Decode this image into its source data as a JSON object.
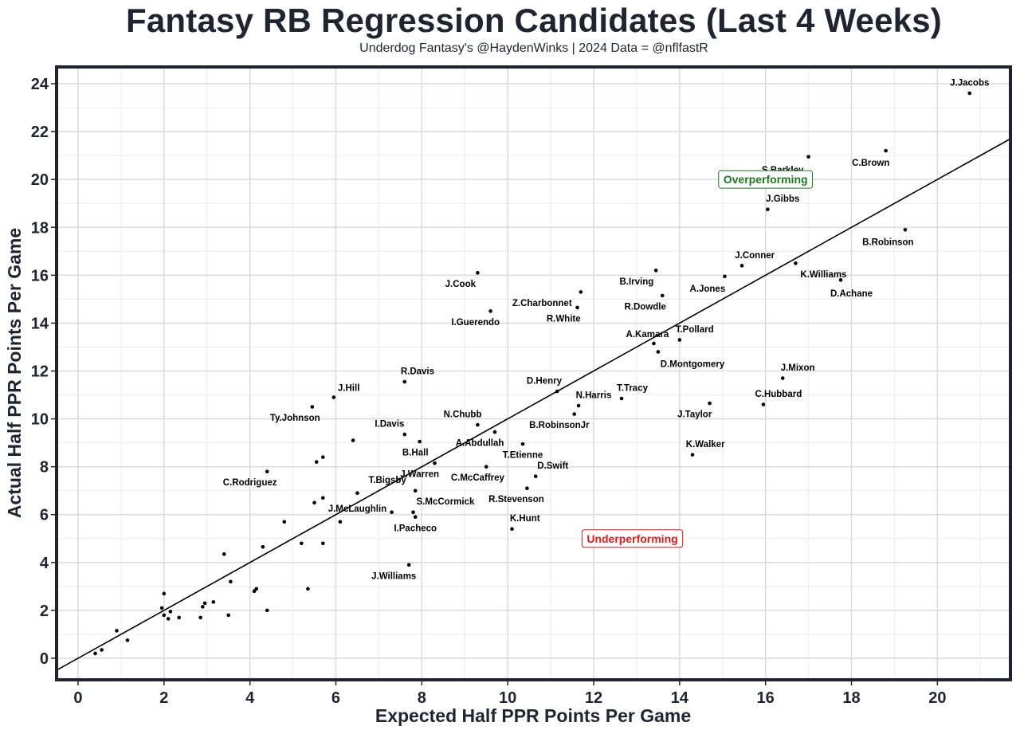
{
  "chart_data": {
    "type": "scatter",
    "title": "Fantasy RB Regression Candidates (Last 4 Weeks)",
    "subtitle": "Underdog Fantasy's @HaydenWinks | 2024 Data = @nflfastR",
    "xlabel": "Expected Half PPR Points Per Game",
    "ylabel": "Actual Half PPR Points Per Game",
    "xlim": [
      -0.5,
      21.7
    ],
    "ylim": [
      -0.9,
      24.7
    ],
    "xticks": [
      "0",
      "2",
      "4",
      "6",
      "8",
      "10",
      "12",
      "14",
      "16",
      "18",
      "20"
    ],
    "yticks": [
      "0",
      "2",
      "4",
      "6",
      "8",
      "10",
      "12",
      "14",
      "16",
      "18",
      "20",
      "22",
      "24"
    ],
    "reference_line": {
      "slope": 1,
      "intercept": 0
    },
    "annotations": [
      {
        "text": "Overperforming",
        "x": 16.0,
        "y": 20.0,
        "color": "#1a7a1a"
      },
      {
        "text": "Underperforming",
        "x": 12.9,
        "y": 5.0,
        "color": "#e01818"
      }
    ],
    "points": [
      {
        "x": 20.75,
        "y": 23.6,
        "label": "J.Jacobs",
        "lx": 20.75,
        "ly": 24.05
      },
      {
        "x": 18.8,
        "y": 21.2,
        "label": "C.Brown",
        "lx": 18.45,
        "ly": 20.7
      },
      {
        "x": 17.0,
        "y": 20.95,
        "label": "S.Barkley",
        "lx": 16.4,
        "ly": 20.4
      },
      {
        "x": 16.05,
        "y": 18.75,
        "label": "J.Gibbs",
        "lx": 16.4,
        "ly": 19.2
      },
      {
        "x": 19.25,
        "y": 17.9,
        "label": "B.Robinson",
        "lx": 18.85,
        "ly": 17.4
      },
      {
        "x": 15.45,
        "y": 16.4,
        "label": "J.Conner",
        "lx": 15.75,
        "ly": 16.85
      },
      {
        "x": 16.7,
        "y": 16.5,
        "label": "K.Williams",
        "lx": 17.35,
        "ly": 16.05
      },
      {
        "x": 15.05,
        "y": 15.95,
        "label": "A.Jones",
        "lx": 14.65,
        "ly": 15.45
      },
      {
        "x": 17.75,
        "y": 15.8,
        "label": "D.Achane",
        "lx": 18.0,
        "ly": 15.25
      },
      {
        "x": 13.45,
        "y": 16.2,
        "label": "B.Irving",
        "lx": 13.0,
        "ly": 15.75
      },
      {
        "x": 13.6,
        "y": 15.15,
        "label": "R.Dowdle",
        "lx": 13.2,
        "ly": 14.7
      },
      {
        "x": 11.7,
        "y": 15.3,
        "label": "Z.Charbonnet",
        "lx": 10.8,
        "ly": 14.85
      },
      {
        "x": 11.62,
        "y": 14.65,
        "label": "R.White",
        "lx": 11.3,
        "ly": 14.2
      },
      {
        "x": 9.3,
        "y": 16.1,
        "label": "J.Cook",
        "lx": 8.9,
        "ly": 15.65
      },
      {
        "x": 9.6,
        "y": 14.5,
        "label": "I.Guerendo",
        "lx": 9.25,
        "ly": 14.05
      },
      {
        "x": 14.0,
        "y": 13.3,
        "label": "T.Pollard",
        "lx": 14.35,
        "ly": 13.75
      },
      {
        "x": 13.4,
        "y": 13.15,
        "label": "A.Kamara",
        "lx": 13.25,
        "ly": 13.55
      },
      {
        "x": 13.5,
        "y": 12.8,
        "label": "D.Montgomery",
        "lx": 14.3,
        "ly": 12.3
      },
      {
        "x": 16.4,
        "y": 11.7,
        "label": "J.Mixon",
        "lx": 16.75,
        "ly": 12.15
      },
      {
        "x": 15.95,
        "y": 10.6,
        "label": "C.Hubbard",
        "lx": 16.3,
        "ly": 11.05
      },
      {
        "x": 14.7,
        "y": 10.65,
        "label": "J.Taylor",
        "lx": 14.35,
        "ly": 10.2
      },
      {
        "x": 12.65,
        "y": 10.85,
        "label": "T.Tracy",
        "lx": 12.9,
        "ly": 11.3
      },
      {
        "x": 11.15,
        "y": 11.15,
        "label": "D.Henry",
        "lx": 10.85,
        "ly": 11.6
      },
      {
        "x": 11.65,
        "y": 10.55,
        "label": "N.Harris",
        "lx": 12.0,
        "ly": 11.0
      },
      {
        "x": 11.55,
        "y": 10.2,
        "label": "B.RobinsonJr",
        "lx": 11.2,
        "ly": 9.75
      },
      {
        "x": 14.3,
        "y": 8.5,
        "label": "K.Walker",
        "lx": 14.6,
        "ly": 8.95
      },
      {
        "x": 7.6,
        "y": 11.55,
        "label": "R.Davis",
        "lx": 7.9,
        "ly": 12.0
      },
      {
        "x": 5.95,
        "y": 10.9,
        "label": "J.Hill",
        "lx": 6.3,
        "ly": 11.3
      },
      {
        "x": 5.45,
        "y": 10.5,
        "label": "Ty.Johnson",
        "lx": 5.05,
        "ly": 10.05
      },
      {
        "x": 7.6,
        "y": 9.35,
        "label": "I.Davis",
        "lx": 7.25,
        "ly": 9.8
      },
      {
        "x": 9.3,
        "y": 9.75,
        "label": "N.Chubb",
        "lx": 8.95,
        "ly": 10.2
      },
      {
        "x": 9.7,
        "y": 9.45,
        "label": "A.Abdullah",
        "lx": 9.35,
        "ly": 9.0
      },
      {
        "x": 7.95,
        "y": 9.05,
        "label": "B.Hall",
        "lx": 7.85,
        "ly": 8.6
      },
      {
        "x": 10.35,
        "y": 8.95,
        "label": "T.Etienne",
        "lx": 10.35,
        "ly": 8.5
      },
      {
        "x": 9.5,
        "y": 8.0,
        "label": "C.McCaffrey",
        "lx": 9.3,
        "ly": 7.55
      },
      {
        "x": 10.65,
        "y": 7.6,
        "label": "D.Swift",
        "lx": 11.05,
        "ly": 8.05
      },
      {
        "x": 10.45,
        "y": 7.1,
        "label": "R.Stevenson",
        "lx": 10.2,
        "ly": 6.65
      },
      {
        "x": 8.3,
        "y": 8.15,
        "label": "J.Warren",
        "lx": 7.95,
        "ly": 7.7
      },
      {
        "x": 7.85,
        "y": 7.0,
        "label": "T.Bigsby",
        "lx": 7.2,
        "ly": 7.45
      },
      {
        "x": 7.8,
        "y": 6.1,
        "label": "S.McCormick",
        "lx": 8.55,
        "ly": 6.55
      },
      {
        "x": 7.85,
        "y": 5.9,
        "label": "I.Pacheco",
        "lx": 7.85,
        "ly": 5.45
      },
      {
        "x": 10.1,
        "y": 5.4,
        "label": "K.Hunt",
        "lx": 10.4,
        "ly": 5.85
      },
      {
        "x": 4.4,
        "y": 7.8,
        "label": "C.Rodriguez",
        "lx": 4.0,
        "ly": 7.35
      },
      {
        "x": 5.7,
        "y": 6.7,
        "label": "J.McLaughlin",
        "lx": 6.5,
        "ly": 6.25
      },
      {
        "x": 7.7,
        "y": 3.9,
        "label": "J.Williams",
        "lx": 7.35,
        "ly": 3.45
      },
      {
        "x": 6.4,
        "y": 9.1
      },
      {
        "x": 5.7,
        "y": 8.4
      },
      {
        "x": 5.55,
        "y": 8.2
      },
      {
        "x": 6.5,
        "y": 6.9
      },
      {
        "x": 5.5,
        "y": 6.5
      },
      {
        "x": 7.3,
        "y": 6.1
      },
      {
        "x": 4.8,
        "y": 5.7
      },
      {
        "x": 6.1,
        "y": 5.7
      },
      {
        "x": 5.2,
        "y": 4.8
      },
      {
        "x": 5.7,
        "y": 4.8
      },
      {
        "x": 4.3,
        "y": 4.65
      },
      {
        "x": 3.4,
        "y": 4.35
      },
      {
        "x": 3.55,
        "y": 3.2
      },
      {
        "x": 5.35,
        "y": 2.9
      },
      {
        "x": 4.15,
        "y": 2.9
      },
      {
        "x": 4.1,
        "y": 2.8
      },
      {
        "x": 4.4,
        "y": 2.0
      },
      {
        "x": 3.15,
        "y": 2.35
      },
      {
        "x": 2.95,
        "y": 2.3
      },
      {
        "x": 2.9,
        "y": 2.15
      },
      {
        "x": 3.5,
        "y": 1.8
      },
      {
        "x": 2.85,
        "y": 1.7
      },
      {
        "x": 2.35,
        "y": 1.7
      },
      {
        "x": 2.0,
        "y": 2.7
      },
      {
        "x": 1.95,
        "y": 2.1
      },
      {
        "x": 2.15,
        "y": 1.95
      },
      {
        "x": 2.0,
        "y": 1.8
      },
      {
        "x": 2.1,
        "y": 1.65
      },
      {
        "x": 0.9,
        "y": 1.15
      },
      {
        "x": 1.15,
        "y": 0.75
      },
      {
        "x": 0.55,
        "y": 0.35
      },
      {
        "x": 0.4,
        "y": 0.2
      }
    ]
  }
}
